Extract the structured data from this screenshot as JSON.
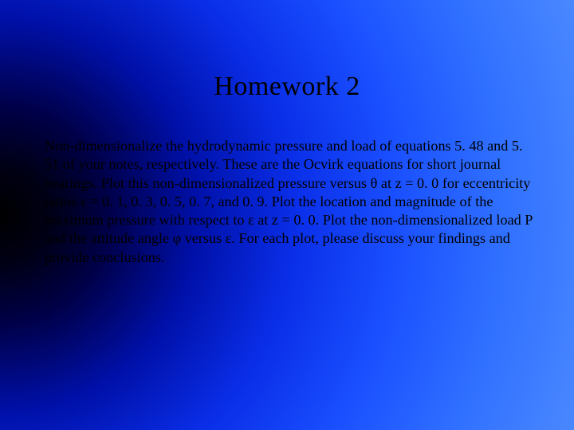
{
  "slide": {
    "title": "Homework 2",
    "body": "Non-dimensionalize the hydrodynamic pressure and load of equations 5. 48 and 5. 51 of your notes, respectively. These are the Ocvirk equations for short journal bearings.  Plot this non-dimensionalized pressure versus θ at z = 0. 0 for eccentricity ratios ε = 0. 1, 0. 3, 0. 5, 0. 7, and 0. 9.  Plot the location and magnitude of the maximum pressure with respect to ε at z = 0. 0.  Plot the non-dimensionalized load P and the attitude angle φ versus ε.  For each plot, please discuss your findings and provide conclusions.",
    "background": {
      "type": "radial-gradient",
      "from_color": "#000000",
      "to_color": "#4a88ff",
      "center": "left-middle"
    },
    "title_fontsize": 34,
    "body_fontsize": 18,
    "text_color": "#000000",
    "font_family": "Times New Roman"
  }
}
